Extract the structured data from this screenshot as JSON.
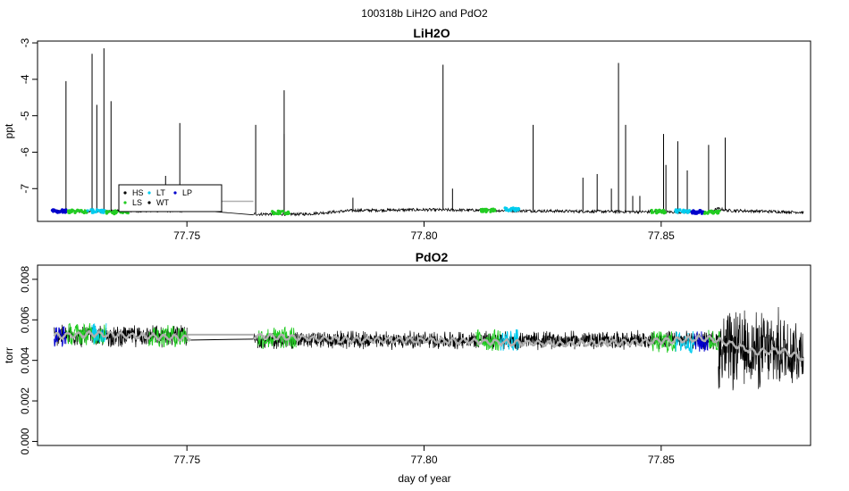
{
  "figure": {
    "suptitle": "100318b   LiH2O and PdO2",
    "xlabel": "day of year"
  },
  "colors": {
    "HS": "#000000",
    "LS": "#22cc22",
    "LT": "#00ccee",
    "WT": "#000000",
    "LP": "#0000cc",
    "smooth": "#b0b0b0"
  },
  "chart_data": [
    {
      "type": "line",
      "title": "LiH2O",
      "ylabel": "ppt",
      "xlim": [
        77.7185,
        77.8815
      ],
      "ylim": [
        -7.9,
        -2.95
      ],
      "x_ticks": [
        77.75,
        77.8,
        77.85
      ],
      "x_tick_labels": [
        "77.75",
        "77.80",
        "77.85"
      ],
      "y_ticks": [
        -7,
        -6,
        -5,
        -4,
        -3
      ],
      "y_tick_labels": [
        "-7",
        "-6",
        "-5",
        "-4",
        "-3"
      ],
      "grid": false,
      "legend": {
        "placement": "lower-left",
        "entries": [
          {
            "label": "HS",
            "color_key": "HS"
          },
          {
            "label": "LT",
            "color_key": "LT"
          },
          {
            "label": "LP",
            "color_key": "LP"
          },
          {
            "label": "LS",
            "color_key": "LS"
          },
          {
            "label": "WT",
            "color_key": "WT"
          }
        ]
      },
      "baseline": [
        [
          77.722,
          -7.62
        ],
        [
          77.735,
          -7.62
        ],
        [
          77.75,
          -7.6
        ],
        [
          77.764,
          -7.7
        ],
        [
          77.775,
          -7.7
        ],
        [
          77.785,
          -7.6
        ],
        [
          77.8,
          -7.58
        ],
        [
          77.83,
          -7.62
        ],
        [
          77.86,
          -7.65
        ],
        [
          77.862,
          -7.55
        ],
        [
          77.864,
          -7.6
        ],
        [
          77.88,
          -7.65
        ]
      ],
      "gap": [
        77.751,
        77.764
      ],
      "gap_line": [
        [
          77.75,
          -7.35
        ],
        [
          77.764,
          -7.35
        ]
      ],
      "spikes": [
        [
          77.7245,
          -4.05
        ],
        [
          77.73,
          -3.3
        ],
        [
          77.731,
          -4.7
        ],
        [
          77.7325,
          -3.15
        ],
        [
          77.734,
          -4.6
        ],
        [
          77.7385,
          -7.2
        ],
        [
          77.7425,
          -6.9
        ],
        [
          77.7455,
          -6.65
        ],
        [
          77.7485,
          -5.2
        ],
        [
          77.7645,
          -5.25
        ],
        [
          77.7705,
          -4.3
        ],
        [
          77.7705,
          -5.5
        ],
        [
          77.785,
          -7.25
        ],
        [
          77.804,
          -3.6
        ],
        [
          77.806,
          -7.0
        ],
        [
          77.823,
          -5.25
        ],
        [
          77.8335,
          -6.7
        ],
        [
          77.8365,
          -6.6
        ],
        [
          77.8395,
          -7.0
        ],
        [
          77.841,
          -3.55
        ],
        [
          77.8425,
          -5.25
        ],
        [
          77.844,
          -7.2
        ],
        [
          77.8455,
          -7.2
        ],
        [
          77.8505,
          -5.5
        ],
        [
          77.851,
          -6.35
        ],
        [
          77.8535,
          -5.7
        ],
        [
          77.8555,
          -6.5
        ],
        [
          77.86,
          -5.8
        ],
        [
          77.8635,
          -5.6
        ]
      ],
      "markers": [
        {
          "x_range": [
            77.7215,
            77.7245
          ],
          "y": -7.62,
          "color_key": "LP"
        },
        {
          "x_range": [
            77.725,
            77.729
          ],
          "y": -7.63,
          "color_key": "LS"
        },
        {
          "x_range": [
            77.729,
            77.733
          ],
          "y": -7.62,
          "color_key": "LT"
        },
        {
          "x_range": [
            77.733,
            77.738
          ],
          "y": -7.65,
          "color_key": "LS"
        },
        {
          "x_range": [
            77.768,
            77.772
          ],
          "y": -7.66,
          "color_key": "LS"
        },
        {
          "x_range": [
            77.812,
            77.815
          ],
          "y": -7.6,
          "color_key": "LS"
        },
        {
          "x_range": [
            77.817,
            77.82
          ],
          "y": -7.57,
          "color_key": "LT"
        },
        {
          "x_range": [
            77.848,
            77.851
          ],
          "y": -7.63,
          "color_key": "LS"
        },
        {
          "x_range": [
            77.853,
            77.856
          ],
          "y": -7.62,
          "color_key": "LT"
        },
        {
          "x_range": [
            77.856,
            77.859
          ],
          "y": -7.64,
          "color_key": "LP"
        },
        {
          "x_range": [
            77.859,
            77.8625
          ],
          "y": -7.65,
          "color_key": "LS"
        }
      ]
    },
    {
      "type": "line",
      "title": "PdO2",
      "ylabel": "torr",
      "xlabel": "day of year",
      "xlim": [
        77.7185,
        77.8815
      ],
      "ylim": [
        -0.0002,
        0.0087
      ],
      "x_ticks": [
        77.75,
        77.8,
        77.85
      ],
      "x_tick_labels": [
        "77.75",
        "77.80",
        "77.85"
      ],
      "y_ticks": [
        0.0,
        0.002,
        0.004,
        0.006,
        0.008
      ],
      "y_tick_labels": [
        "0.000",
        "0.002",
        "0.004",
        "0.006",
        "0.008"
      ],
      "grid": false,
      "gap": [
        77.751,
        77.764
      ],
      "gap_line": [
        [
          77.75,
          0.00527
        ],
        [
          77.764,
          0.00527
        ]
      ],
      "smooth_series": [
        [
          77.722,
          0.0052
        ],
        [
          77.73,
          0.0053
        ],
        [
          77.74,
          0.0052
        ],
        [
          77.75,
          0.0051
        ],
        [
          77.7645,
          0.0052
        ],
        [
          77.775,
          0.0051
        ],
        [
          77.785,
          0.005
        ],
        [
          77.8,
          0.005
        ],
        [
          77.815,
          0.0049
        ],
        [
          77.83,
          0.0048
        ],
        [
          77.845,
          0.0049
        ],
        [
          77.86,
          0.0051
        ],
        [
          77.865,
          0.0048
        ],
        [
          77.87,
          0.0044
        ],
        [
          77.875,
          0.0045
        ],
        [
          77.88,
          0.0041
        ]
      ],
      "noise": [
        {
          "x_range": [
            77.722,
            77.75
          ],
          "center": 0.0052,
          "amplitude": 0.0006
        },
        {
          "x_range": [
            77.764,
            77.862
          ],
          "center": 0.005,
          "amplitude": 0.0005
        },
        {
          "x_range": [
            77.862,
            77.88
          ],
          "center": 0.0045,
          "amplitude": 0.0022
        }
      ],
      "markers": [
        {
          "x_range": [
            77.722,
            77.7245
          ],
          "center": 0.0052,
          "color_key": "LP"
        },
        {
          "x_range": [
            77.7245,
            77.733
          ],
          "center": 0.0053,
          "color_key": "LS"
        },
        {
          "x_range": [
            77.73,
            77.733
          ],
          "center": 0.0053,
          "color_key": "LT"
        },
        {
          "x_range": [
            77.742,
            77.75
          ],
          "center": 0.0052,
          "color_key": "LS"
        },
        {
          "x_range": [
            77.765,
            77.773
          ],
          "center": 0.0051,
          "color_key": "LS"
        },
        {
          "x_range": [
            77.811,
            77.816
          ],
          "center": 0.005,
          "color_key": "LS"
        },
        {
          "x_range": [
            77.816,
            77.82
          ],
          "center": 0.005,
          "color_key": "LT"
        },
        {
          "x_range": [
            77.848,
            77.853
          ],
          "center": 0.0049,
          "color_key": "LS"
        },
        {
          "x_range": [
            77.853,
            77.857
          ],
          "center": 0.0049,
          "color_key": "LT"
        },
        {
          "x_range": [
            77.857,
            77.86
          ],
          "center": 0.0049,
          "color_key": "LP"
        },
        {
          "x_range": [
            77.86,
            77.8625
          ],
          "center": 0.005,
          "color_key": "LS"
        }
      ]
    }
  ]
}
